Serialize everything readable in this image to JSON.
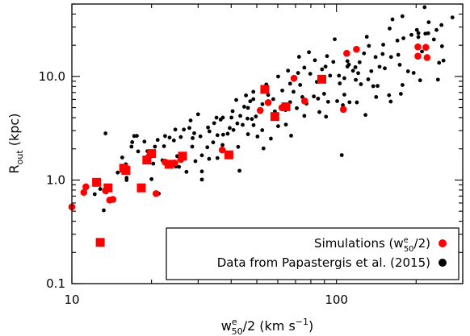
{
  "chart_data": {
    "type": "scatter",
    "x_scale": "log",
    "y_scale": "log",
    "xlim": [
      10,
      300
    ],
    "ylim": [
      0.1,
      50
    ],
    "xlabel_main": "w",
    "xlabel_sup": "e",
    "xlabel_sub": "50",
    "xlabel_rest": "/2 (km s",
    "xlabel_exp": "−1",
    "xlabel_close": ")",
    "ylabel_main": "R",
    "ylabel_sub": "out",
    "ylabel_rest": " (kpc)",
    "x_ticks": [
      {
        "value": 10,
        "label": "10"
      },
      {
        "value": 100,
        "label": "100"
      }
    ],
    "y_ticks": [
      {
        "value": 0.1,
        "label": "0.1"
      },
      {
        "value": 1,
        "label": "1.0"
      },
      {
        "value": 10,
        "label": "10.0"
      }
    ],
    "grid": false,
    "legend_position": "bottom-right",
    "legend": [
      {
        "pre": "Simulations (w",
        "sup": "e",
        "sub": "50",
        "post": "/2)",
        "color": "#ff0000"
      },
      {
        "text": "Data from Papastergis et al. (2015)",
        "color": "#000000"
      }
    ],
    "series": [
      {
        "marker": "circle",
        "color": "#ff0000",
        "points": [
          [
            10.0,
            0.55
          ],
          [
            11.1,
            0.76
          ],
          [
            11.3,
            0.86
          ],
          [
            13.4,
            0.79
          ],
          [
            13.9,
            0.64
          ],
          [
            14.3,
            0.65
          ],
          [
            20.8,
            0.74
          ],
          [
            37.0,
            1.95
          ],
          [
            19.6,
            1.7
          ],
          [
            22.5,
            1.49
          ],
          [
            23.6,
            1.4
          ],
          [
            24.5,
            1.46
          ],
          [
            25.8,
            1.58
          ],
          [
            51.5,
            4.7
          ],
          [
            55.2,
            5.6
          ],
          [
            62.2,
            5.0
          ],
          [
            69.1,
            9.6
          ],
          [
            75.8,
            5.8
          ],
          [
            106.2,
            4.8
          ],
          [
            109.3,
            16.7
          ],
          [
            119.0,
            18.3
          ],
          [
            203.1,
            19.3
          ],
          [
            203.1,
            15.7
          ],
          [
            217.6,
            19.1
          ],
          [
            220.0,
            15.2
          ]
        ]
      },
      {
        "marker": "square",
        "color": "#ff0000",
        "points": [
          [
            12.4,
            0.95
          ],
          [
            13.7,
            0.84
          ],
          [
            12.8,
            0.25
          ],
          [
            15.7,
            1.3
          ],
          [
            16.0,
            1.24
          ],
          [
            18.3,
            0.84
          ],
          [
            19.2,
            1.56
          ],
          [
            20.0,
            1.8
          ],
          [
            23.3,
            1.42
          ],
          [
            26.2,
            1.7
          ],
          [
            39.2,
            1.75
          ],
          [
            53.6,
            7.5
          ],
          [
            58.5,
            4.1
          ],
          [
            64.4,
            5.1
          ],
          [
            88.0,
            9.4
          ]
        ]
      },
      {
        "marker": "dot",
        "color": "#000000",
        "points": [
          [
            12.2,
            0.73
          ],
          [
            12.8,
            0.82
          ],
          [
            13.2,
            0.51
          ],
          [
            13.5,
            0.76
          ],
          [
            13.4,
            2.82
          ],
          [
            14.9,
            1.18
          ],
          [
            15.5,
            1.65
          ],
          [
            16.0,
            1.42
          ],
          [
            16.1,
            1.0
          ],
          [
            16.1,
            1.05
          ],
          [
            16.8,
            2.1
          ],
          [
            16.9,
            2.32
          ],
          [
            17.2,
            2.66
          ],
          [
            17.6,
            2.67
          ],
          [
            17.8,
            1.89
          ],
          [
            18.8,
            2.35
          ],
          [
            19.0,
            1.55
          ],
          [
            19.3,
            1.9
          ],
          [
            20.0,
            1.02
          ],
          [
            20.3,
            1.44
          ],
          [
            20.6,
            2.1
          ],
          [
            21.1,
            2.44
          ],
          [
            21.3,
            0.74
          ],
          [
            22.3,
            2.12
          ],
          [
            22.0,
            1.55
          ],
          [
            22.5,
            2.66
          ],
          [
            23.4,
            2.57
          ],
          [
            24.3,
            2.41
          ],
          [
            24.7,
            1.35
          ],
          [
            24.6,
            3.07
          ],
          [
            25.0,
            1.7
          ],
          [
            25.4,
            1.34
          ],
          [
            25.8,
            2.6
          ],
          [
            26.5,
            3.07
          ],
          [
            27.8,
            3.18
          ],
          [
            28.1,
            3.76
          ],
          [
            27.1,
            1.2
          ],
          [
            28.5,
            2.1
          ],
          [
            28.6,
            2.54
          ],
          [
            29.3,
            1.52
          ],
          [
            29.0,
            2.83
          ],
          [
            30.0,
            4.31
          ],
          [
            30.6,
            2.64
          ],
          [
            31.0,
            1.73
          ],
          [
            31.0,
            1.21
          ],
          [
            31.0,
            1.01
          ],
          [
            32.7,
            3.22
          ],
          [
            32.5,
            2.07
          ],
          [
            33.1,
            2.95
          ],
          [
            33.0,
            1.6
          ],
          [
            34.2,
            2.31
          ],
          [
            34.5,
            3.54
          ],
          [
            35.2,
            4.0
          ],
          [
            35.5,
            2.71
          ],
          [
            35.5,
            1.63
          ],
          [
            36.5,
            3.83
          ],
          [
            37.3,
            2.74
          ],
          [
            37.1,
            2.18
          ],
          [
            37.2,
            4.01
          ],
          [
            38.8,
            2.8
          ],
          [
            39.5,
            3.18
          ],
          [
            40.1,
            4.01
          ],
          [
            40.5,
            4.62
          ],
          [
            40.8,
            3.04
          ],
          [
            41.8,
            5.93
          ],
          [
            42.2,
            3.52
          ],
          [
            42.5,
            2.09
          ],
          [
            43.0,
            1.23
          ],
          [
            43.3,
            4.16
          ],
          [
            44.2,
            3.41
          ],
          [
            44.8,
            5.1
          ],
          [
            45.5,
            6.56
          ],
          [
            46.1,
            3.92
          ],
          [
            46.3,
            4.97
          ],
          [
            46.3,
            2.77
          ],
          [
            47.2,
            5.76
          ],
          [
            47.9,
            3.88
          ],
          [
            48.6,
            3.39
          ],
          [
            48.5,
            6.03
          ],
          [
            48.5,
            7.11
          ],
          [
            49.6,
            4.11
          ],
          [
            50.3,
            2.63
          ],
          [
            52.4,
            3.03
          ],
          [
            52.5,
            5.4
          ],
          [
            54.3,
            8.36
          ],
          [
            53.0,
            2.02
          ],
          [
            55.2,
            6.63
          ],
          [
            56.5,
            2.51
          ],
          [
            57.7,
            6.04
          ],
          [
            58.5,
            4.6
          ],
          [
            60.2,
            3.31
          ],
          [
            60.2,
            9.98
          ],
          [
            62.4,
            7.31
          ],
          [
            62.4,
            5.13
          ],
          [
            64.4,
            3.43
          ],
          [
            64.2,
            4.74
          ],
          [
            65.6,
            11.37
          ],
          [
            66.8,
            8.53
          ],
          [
            66.8,
            5.64
          ],
          [
            67.4,
            2.68
          ],
          [
            68.8,
            7.11
          ],
          [
            70.8,
            4.94
          ],
          [
            71.6,
            10.8
          ],
          [
            72.2,
            15.46
          ],
          [
            72.9,
            8.28
          ],
          [
            74.3,
            6.33
          ],
          [
            75.6,
            4.16
          ],
          [
            75.6,
            12.16
          ],
          [
            77.0,
            5.46
          ],
          [
            78.7,
            17.14
          ],
          [
            79.6,
            10.6
          ],
          [
            82.1,
            6.41
          ],
          [
            82.9,
            14.32
          ],
          [
            84.3,
            8.86
          ],
          [
            85.2,
            6.11
          ],
          [
            86.2,
            4.53
          ],
          [
            88.2,
            11.71
          ],
          [
            89.8,
            6.8
          ],
          [
            90.9,
            12.45
          ],
          [
            92.1,
            15.7
          ],
          [
            91.3,
            4.09
          ],
          [
            93.0,
            5.69
          ],
          [
            94.6,
            10.18
          ],
          [
            97.3,
            13.81
          ],
          [
            98.5,
            22.85
          ],
          [
            100.6,
            5.78
          ],
          [
            102.2,
            10.18
          ],
          [
            102.9,
            8.56
          ],
          [
            104.7,
            1.74
          ],
          [
            107.1,
            9.62
          ],
          [
            105.7,
            5.28
          ],
          [
            107.1,
            6.67
          ],
          [
            110.0,
            14.06
          ],
          [
            110.0,
            12.46
          ],
          [
            111.4,
            13.01
          ],
          [
            112.0,
            5.64
          ],
          [
            115.5,
            11.35
          ],
          [
            117.9,
            12.27
          ],
          [
            118.3,
            9.27
          ],
          [
            119.4,
            5.62
          ],
          [
            120.8,
            10.76
          ],
          [
            122.3,
            13.7
          ],
          [
            123.7,
            8.41
          ],
          [
            127.1,
            16.7
          ],
          [
            128.7,
            4.25
          ],
          [
            130.2,
            24.14
          ],
          [
            131.8,
            9.38
          ],
          [
            132.6,
            19.73
          ],
          [
            135.4,
            11.24
          ],
          [
            137.7,
            8.05
          ],
          [
            140.5,
            15.38
          ],
          [
            141.2,
            6.33
          ],
          [
            143.0,
            8.1
          ],
          [
            145.5,
            12.4
          ],
          [
            149.4,
            16.47
          ],
          [
            150.2,
            20.25
          ],
          [
            152.3,
            11.97
          ],
          [
            158.0,
            6.59
          ],
          [
            158.8,
            29.02
          ],
          [
            160.8,
            15.41
          ],
          [
            160.3,
            5.72
          ],
          [
            162.8,
            35.55
          ],
          [
            169.9,
            22.21
          ],
          [
            171.2,
            16.17
          ],
          [
            173.4,
            12.96
          ],
          [
            175.1,
            6.79
          ],
          [
            177.5,
            38.14
          ],
          [
            177.6,
            8.27
          ],
          [
            179.1,
            23.37
          ],
          [
            186.4,
            11.2
          ],
          [
            192.0,
            25.19
          ],
          [
            195.7,
            10.82
          ],
          [
            201.3,
            28.13
          ],
          [
            203.9,
            23.97
          ],
          [
            204.0,
            26.18
          ],
          [
            207.1,
            9.17
          ],
          [
            210.4,
            17.42
          ],
          [
            215.3,
            46.61
          ],
          [
            216.7,
            25.88
          ],
          [
            223.1,
            33.35
          ],
          [
            222.2,
            26.09
          ],
          [
            233.4,
            22.74
          ],
          [
            238.8,
            28.09
          ],
          [
            241.8,
            9.31
          ],
          [
            244.2,
            13.55
          ],
          [
            249.3,
            31.38
          ],
          [
            250.5,
            19.56
          ],
          [
            253.7,
            14.23
          ],
          [
            274.3,
            37.1
          ]
        ]
      }
    ]
  }
}
